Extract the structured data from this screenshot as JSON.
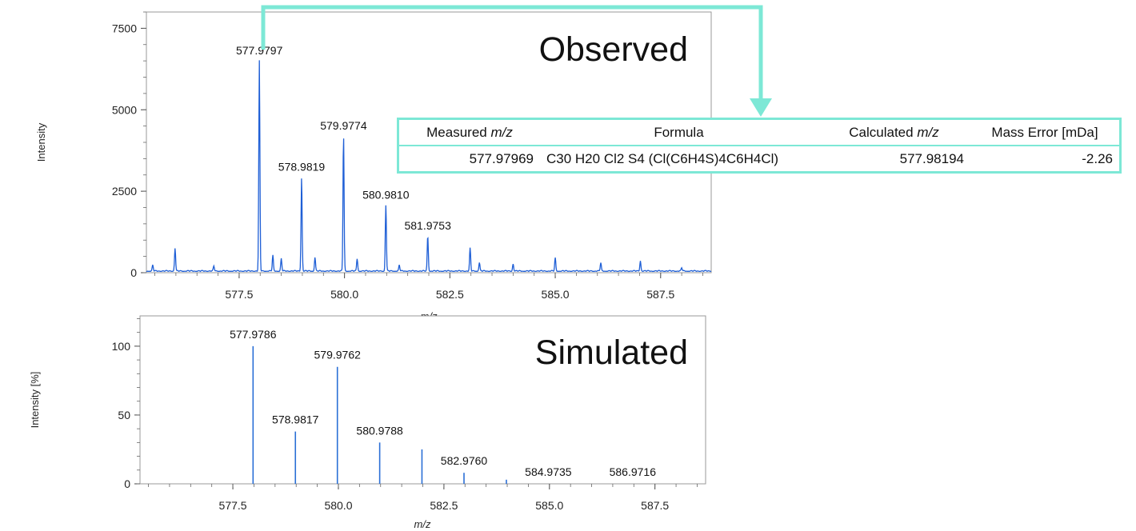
{
  "colors": {
    "spectrum": "#1f5fd6",
    "simulated": "#2a6fd6",
    "accent": "#7de8d6",
    "axis": "#333333"
  },
  "chart_data": [
    {
      "type": "line",
      "title": "Observed",
      "xlabel": "m/z",
      "ylabel": "Intensity",
      "xlim": [
        575.3,
        588.7
      ],
      "ylim": [
        0,
        8000
      ],
      "x_ticks": [
        577.5,
        580.0,
        582.5,
        585.0,
        587.5
      ],
      "x_tick_labels": [
        "577.5",
        "580.0",
        "582.5",
        "585.0",
        "587.5"
      ],
      "y_ticks": [
        0,
        2500,
        5000,
        7500
      ],
      "y_tick_labels": [
        "0",
        "2500",
        "5000",
        "7500"
      ],
      "peaks": [
        {
          "x": 575.45,
          "y": 180
        },
        {
          "x": 575.98,
          "y": 700
        },
        {
          "x": 576.9,
          "y": 150
        },
        {
          "x": 577.9797,
          "y": 6450,
          "label": "577.9797"
        },
        {
          "x": 578.3,
          "y": 480
        },
        {
          "x": 578.5,
          "y": 380
        },
        {
          "x": 578.9819,
          "y": 2880,
          "label": "578.9819"
        },
        {
          "x": 579.3,
          "y": 420
        },
        {
          "x": 579.9774,
          "y": 4150,
          "label": "579.9774"
        },
        {
          "x": 580.3,
          "y": 380
        },
        {
          "x": 580.981,
          "y": 2030,
          "label": "580.9810"
        },
        {
          "x": 581.3,
          "y": 180
        },
        {
          "x": 581.9753,
          "y": 1080,
          "label": "581.9753"
        },
        {
          "x": 582.98,
          "y": 700
        },
        {
          "x": 583.2,
          "y": 260
        },
        {
          "x": 584.0,
          "y": 220
        },
        {
          "x": 585.0,
          "y": 400
        },
        {
          "x": 586.08,
          "y": 250
        },
        {
          "x": 587.02,
          "y": 320
        },
        {
          "x": 588.0,
          "y": 100
        }
      ]
    },
    {
      "type": "bar",
      "title": "Simulated",
      "xlabel": "m/z",
      "ylabel": "Intensity [%]",
      "xlim": [
        575.3,
        588.7
      ],
      "ylim": [
        0,
        122
      ],
      "x_ticks": [
        577.5,
        580.0,
        582.5,
        585.0,
        587.5
      ],
      "x_tick_labels": [
        "577.5",
        "580.0",
        "582.5",
        "585.0",
        "587.5"
      ],
      "y_ticks": [
        0,
        50,
        100
      ],
      "y_tick_labels": [
        "0",
        "50",
        "100"
      ],
      "peaks": [
        {
          "x": 577.9786,
          "y": 100,
          "label": "577.9786"
        },
        {
          "x": 578.9817,
          "y": 38,
          "label": "578.9817"
        },
        {
          "x": 579.9762,
          "y": 85,
          "label": "579.9762"
        },
        {
          "x": 580.9788,
          "y": 30,
          "label": "580.9788"
        },
        {
          "x": 581.98,
          "y": 25
        },
        {
          "x": 582.976,
          "y": 8,
          "label": "582.9760"
        },
        {
          "x": 583.98,
          "y": 3
        },
        {
          "x": 584.9735,
          "y": 0,
          "label": "584.9735"
        },
        {
          "x": 586.9716,
          "y": 0,
          "label": "586.9716"
        }
      ]
    }
  ],
  "table": {
    "headers": {
      "measured_prefix": "Measured ",
      "measured_em": "m/z",
      "formula": "Formula",
      "calculated_prefix": "Calculated ",
      "calculated_em": "m/z",
      "mass_error": "Mass Error [mDa]"
    },
    "row": {
      "measured": "577.97969",
      "formula": "C30 H20 Cl2 S4 (Cl(C6H4S)4C6H4Cl)",
      "calculated": "577.98194",
      "mass_error": "-2.26"
    }
  }
}
